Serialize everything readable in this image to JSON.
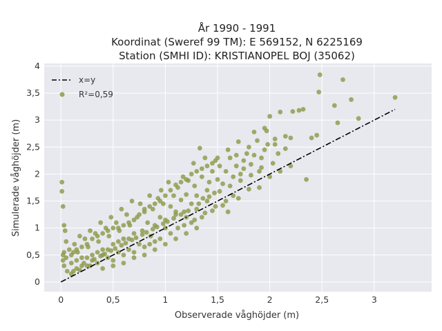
{
  "chart_data": {
    "type": "scatter",
    "title_lines": [
      "År 1990 - 1991",
      "Koordinat (Sweref 99 TM): E 569152, N 6225169",
      "Station (SMHI ID): KRISTIANOPEL BOJ (35062)"
    ],
    "xlabel": "Observerade våghöjder (m)",
    "ylabel": "Simulerade våghöjder (m)",
    "xlim": [
      -0.16,
      3.55
    ],
    "ylim": [
      -0.18,
      4.05
    ],
    "x_ticks": [
      0,
      0.5,
      1,
      1.5,
      2,
      2.5,
      3
    ],
    "x_tick_labels": [
      "0",
      "0,5",
      "1",
      "1,5",
      "2",
      "2,5",
      "3"
    ],
    "y_ticks": [
      0,
      0.5,
      1,
      1.5,
      2,
      2.5,
      3,
      3.5,
      4
    ],
    "y_tick_labels": [
      "0",
      "0,5",
      "1",
      "1,5",
      "2",
      "2,5",
      "3",
      "3,5",
      "4"
    ],
    "grid": true,
    "legend_position": "top-left",
    "legend": [
      {
        "label": "x=y",
        "kind": "line"
      },
      {
        "label": "R²=0,59",
        "kind": "marker"
      }
    ],
    "reference_line": {
      "name": "x=y",
      "x": [
        0,
        3.2
      ],
      "y": [
        0,
        3.2
      ]
    },
    "series": [
      {
        "name": "R²=0,59",
        "color": "#8e9a4a",
        "points": [
          [
            3.2,
            3.42
          ],
          [
            2.85,
            3.03
          ],
          [
            2.78,
            3.38
          ],
          [
            2.7,
            3.75
          ],
          [
            2.62,
            3.27
          ],
          [
            2.65,
            2.95
          ],
          [
            2.48,
            3.84
          ],
          [
            2.47,
            3.52
          ],
          [
            2.45,
            2.72
          ],
          [
            2.35,
            1.9
          ],
          [
            2.4,
            2.67
          ],
          [
            2.32,
            3.2
          ],
          [
            2.28,
            3.18
          ],
          [
            2.22,
            3.16
          ],
          [
            2.2,
            2.67
          ],
          [
            2.15,
            2.47
          ],
          [
            2.1,
            3.15
          ],
          [
            2.08,
            2.38
          ],
          [
            2.05,
            2.65
          ],
          [
            2.03,
            2.2
          ],
          [
            2.0,
            3.07
          ],
          [
            1.98,
            2.55
          ],
          [
            1.97,
            2.8
          ],
          [
            1.95,
            2.85
          ],
          [
            1.92,
            2.3
          ],
          [
            1.9,
            2.05
          ],
          [
            1.88,
            2.62
          ],
          [
            1.85,
            2.78
          ],
          [
            1.82,
            2.18
          ],
          [
            1.8,
            2.5
          ],
          [
            1.78,
            2.38
          ],
          [
            1.75,
            2.25
          ],
          [
            1.72,
            2.0
          ],
          [
            1.7,
            2.6
          ],
          [
            1.68,
            2.15
          ],
          [
            1.65,
            1.95
          ],
          [
            1.62,
            2.3
          ],
          [
            1.6,
            2.45
          ],
          [
            1.58,
            2.05
          ],
          [
            1.55,
            1.82
          ],
          [
            1.52,
            2.15
          ],
          [
            1.5,
            1.9
          ],
          [
            1.48,
            2.25
          ],
          [
            1.47,
            1.65
          ],
          [
            1.45,
            2.05
          ],
          [
            1.42,
            1.85
          ],
          [
            1.4,
            1.7
          ],
          [
            1.38,
            2.3
          ],
          [
            1.36,
            1.55
          ],
          [
            1.35,
            1.95
          ],
          [
            1.33,
            2.48
          ],
          [
            1.3,
            1.6
          ],
          [
            1.28,
            1.78
          ],
          [
            1.27,
            2.2
          ],
          [
            1.25,
            1.45
          ],
          [
            1.22,
            1.88
          ],
          [
            1.2,
            1.62
          ],
          [
            1.18,
            1.3
          ],
          [
            1.17,
            1.95
          ],
          [
            1.15,
            1.52
          ],
          [
            1.12,
            1.75
          ],
          [
            1.1,
            1.25
          ],
          [
            1.08,
            1.6
          ],
          [
            1.05,
            1.4
          ],
          [
            1.03,
            1.85
          ],
          [
            1.0,
            1.15
          ],
          [
            0.98,
            1.45
          ],
          [
            0.96,
            1.7
          ],
          [
            0.95,
            1.2
          ],
          [
            0.93,
            1.55
          ],
          [
            0.9,
            1.05
          ],
          [
            0.88,
            1.35
          ],
          [
            0.86,
            0.85
          ],
          [
            0.85,
            1.6
          ],
          [
            0.83,
            1.1
          ],
          [
            0.8,
            1.3
          ],
          [
            0.78,
            0.95
          ],
          [
            0.76,
            1.45
          ],
          [
            0.75,
            0.7
          ],
          [
            0.73,
            1.2
          ],
          [
            0.7,
            0.9
          ],
          [
            0.68,
            1.5
          ],
          [
            0.66,
            1.05
          ],
          [
            0.65,
            0.6
          ],
          [
            0.63,
            1.25
          ],
          [
            0.6,
            0.8
          ],
          [
            0.58,
            1.35
          ],
          [
            0.56,
            0.95
          ],
          [
            0.55,
            0.55
          ],
          [
            0.53,
            1.1
          ],
          [
            0.5,
            0.7
          ],
          [
            0.48,
            1.2
          ],
          [
            0.46,
            0.85
          ],
          [
            0.45,
            0.45
          ],
          [
            0.43,
            1.0
          ],
          [
            0.4,
            0.6
          ],
          [
            0.38,
            1.1
          ],
          [
            0.36,
            0.75
          ],
          [
            0.35,
            0.35
          ],
          [
            0.33,
            0.9
          ],
          [
            0.3,
            0.5
          ],
          [
            0.28,
            0.95
          ],
          [
            0.26,
            0.65
          ],
          [
            0.25,
            0.3
          ],
          [
            0.23,
            0.8
          ],
          [
            0.2,
            0.45
          ],
          [
            0.18,
            0.85
          ],
          [
            0.16,
            0.55
          ],
          [
            0.15,
            0.25
          ],
          [
            0.13,
            0.7
          ],
          [
            0.1,
            0.35
          ],
          [
            0.08,
            0.6
          ],
          [
            0.06,
            0.2
          ],
          [
            0.05,
            0.45
          ],
          [
            0.03,
            0.3
          ],
          [
            0.02,
            0.4
          ],
          [
            0.01,
            1.85
          ],
          [
            0.01,
            1.68
          ],
          [
            0.02,
            1.4
          ],
          [
            0.03,
            1.05
          ],
          [
            0.04,
            0.95
          ],
          [
            0.05,
            0.75
          ],
          [
            0.03,
            0.55
          ],
          [
            0.02,
            0.5
          ],
          [
            1.12,
            1.0
          ],
          [
            1.05,
            0.9
          ],
          [
            0.95,
            0.8
          ],
          [
            1.25,
            1.1
          ],
          [
            1.35,
            1.2
          ],
          [
            1.45,
            1.32
          ],
          [
            1.55,
            1.42
          ],
          [
            1.6,
            1.3
          ],
          [
            1.4,
            1.5
          ],
          [
            1.3,
            1.35
          ],
          [
            1.2,
            1.2
          ],
          [
            1.1,
            1.3
          ],
          [
            1.0,
            1.0
          ],
          [
            0.9,
            0.75
          ],
          [
            0.85,
            0.7
          ],
          [
            0.8,
            0.65
          ],
          [
            0.7,
            0.55
          ],
          [
            0.65,
            0.8
          ],
          [
            0.6,
            0.5
          ],
          [
            0.55,
            0.75
          ],
          [
            0.5,
            0.4
          ],
          [
            0.45,
            0.6
          ],
          [
            0.4,
            0.5
          ],
          [
            0.35,
            0.55
          ],
          [
            0.3,
            0.4
          ],
          [
            0.25,
            0.45
          ],
          [
            0.2,
            0.3
          ],
          [
            0.15,
            0.4
          ],
          [
            0.12,
            0.2
          ],
          [
            0.1,
            0.15
          ],
          [
            0.18,
            0.22
          ],
          [
            0.22,
            0.35
          ],
          [
            0.28,
            0.3
          ],
          [
            0.32,
            0.42
          ],
          [
            0.38,
            0.48
          ],
          [
            0.42,
            0.52
          ],
          [
            0.48,
            0.58
          ],
          [
            0.52,
            0.62
          ],
          [
            0.58,
            0.68
          ],
          [
            0.62,
            0.72
          ],
          [
            0.68,
            0.78
          ],
          [
            0.72,
            0.82
          ],
          [
            0.78,
            0.88
          ],
          [
            0.82,
            0.92
          ],
          [
            0.88,
            0.98
          ],
          [
            0.92,
            1.02
          ],
          [
            0.98,
            1.08
          ],
          [
            1.02,
            1.12
          ],
          [
            1.08,
            1.18
          ],
          [
            1.15,
            1.25
          ],
          [
            1.22,
            1.32
          ],
          [
            1.32,
            1.45
          ],
          [
            1.42,
            1.58
          ],
          [
            1.52,
            1.68
          ],
          [
            1.62,
            1.78
          ],
          [
            1.72,
            1.88
          ],
          [
            1.82,
            1.98
          ],
          [
            1.92,
            2.12
          ],
          [
            1.7,
            1.55
          ],
          [
            1.8,
            1.72
          ],
          [
            1.65,
            1.6
          ],
          [
            1.58,
            1.5
          ],
          [
            1.48,
            1.4
          ],
          [
            1.38,
            1.28
          ],
          [
            1.28,
            1.15
          ],
          [
            1.18,
            1.05
          ],
          [
            0.55,
            1.0
          ],
          [
            0.6,
            1.05
          ],
          [
            0.65,
            1.1
          ],
          [
            0.7,
            1.15
          ],
          [
            0.75,
            1.25
          ],
          [
            0.8,
            1.35
          ],
          [
            0.85,
            1.4
          ],
          [
            0.9,
            1.45
          ],
          [
            0.95,
            1.5
          ],
          [
            1.0,
            1.6
          ],
          [
            1.05,
            1.7
          ],
          [
            1.1,
            1.8
          ],
          [
            1.15,
            1.85
          ],
          [
            1.2,
            1.9
          ],
          [
            1.25,
            2.0
          ],
          [
            1.3,
            2.05
          ],
          [
            1.35,
            2.1
          ],
          [
            1.4,
            2.15
          ],
          [
            1.45,
            2.2
          ],
          [
            1.5,
            2.3
          ],
          [
            0.3,
            0.8
          ],
          [
            0.35,
            0.85
          ],
          [
            0.4,
            0.9
          ],
          [
            0.45,
            0.95
          ],
          [
            0.5,
            1.0
          ],
          [
            0.25,
            0.7
          ],
          [
            0.2,
            0.65
          ],
          [
            0.15,
            0.6
          ],
          [
            0.1,
            0.5
          ],
          [
            0.12,
            0.55
          ],
          [
            0.6,
            0.35
          ],
          [
            0.7,
            0.45
          ],
          [
            0.8,
            0.5
          ],
          [
            0.9,
            0.6
          ],
          [
            1.0,
            0.7
          ],
          [
            1.1,
            0.8
          ],
          [
            1.2,
            0.9
          ],
          [
            1.3,
            1.0
          ],
          [
            0.5,
            0.3
          ],
          [
            0.4,
            0.25
          ],
          [
            1.9,
            1.75
          ],
          [
            2.0,
            1.95
          ],
          [
            2.1,
            2.05
          ],
          [
            2.2,
            2.15
          ],
          [
            1.85,
            2.35
          ],
          [
            1.95,
            2.45
          ],
          [
            2.05,
            2.55
          ],
          [
            2.15,
            2.7
          ],
          [
            1.75,
            2.1
          ],
          [
            1.68,
            2.35
          ]
        ]
      }
    ]
  }
}
